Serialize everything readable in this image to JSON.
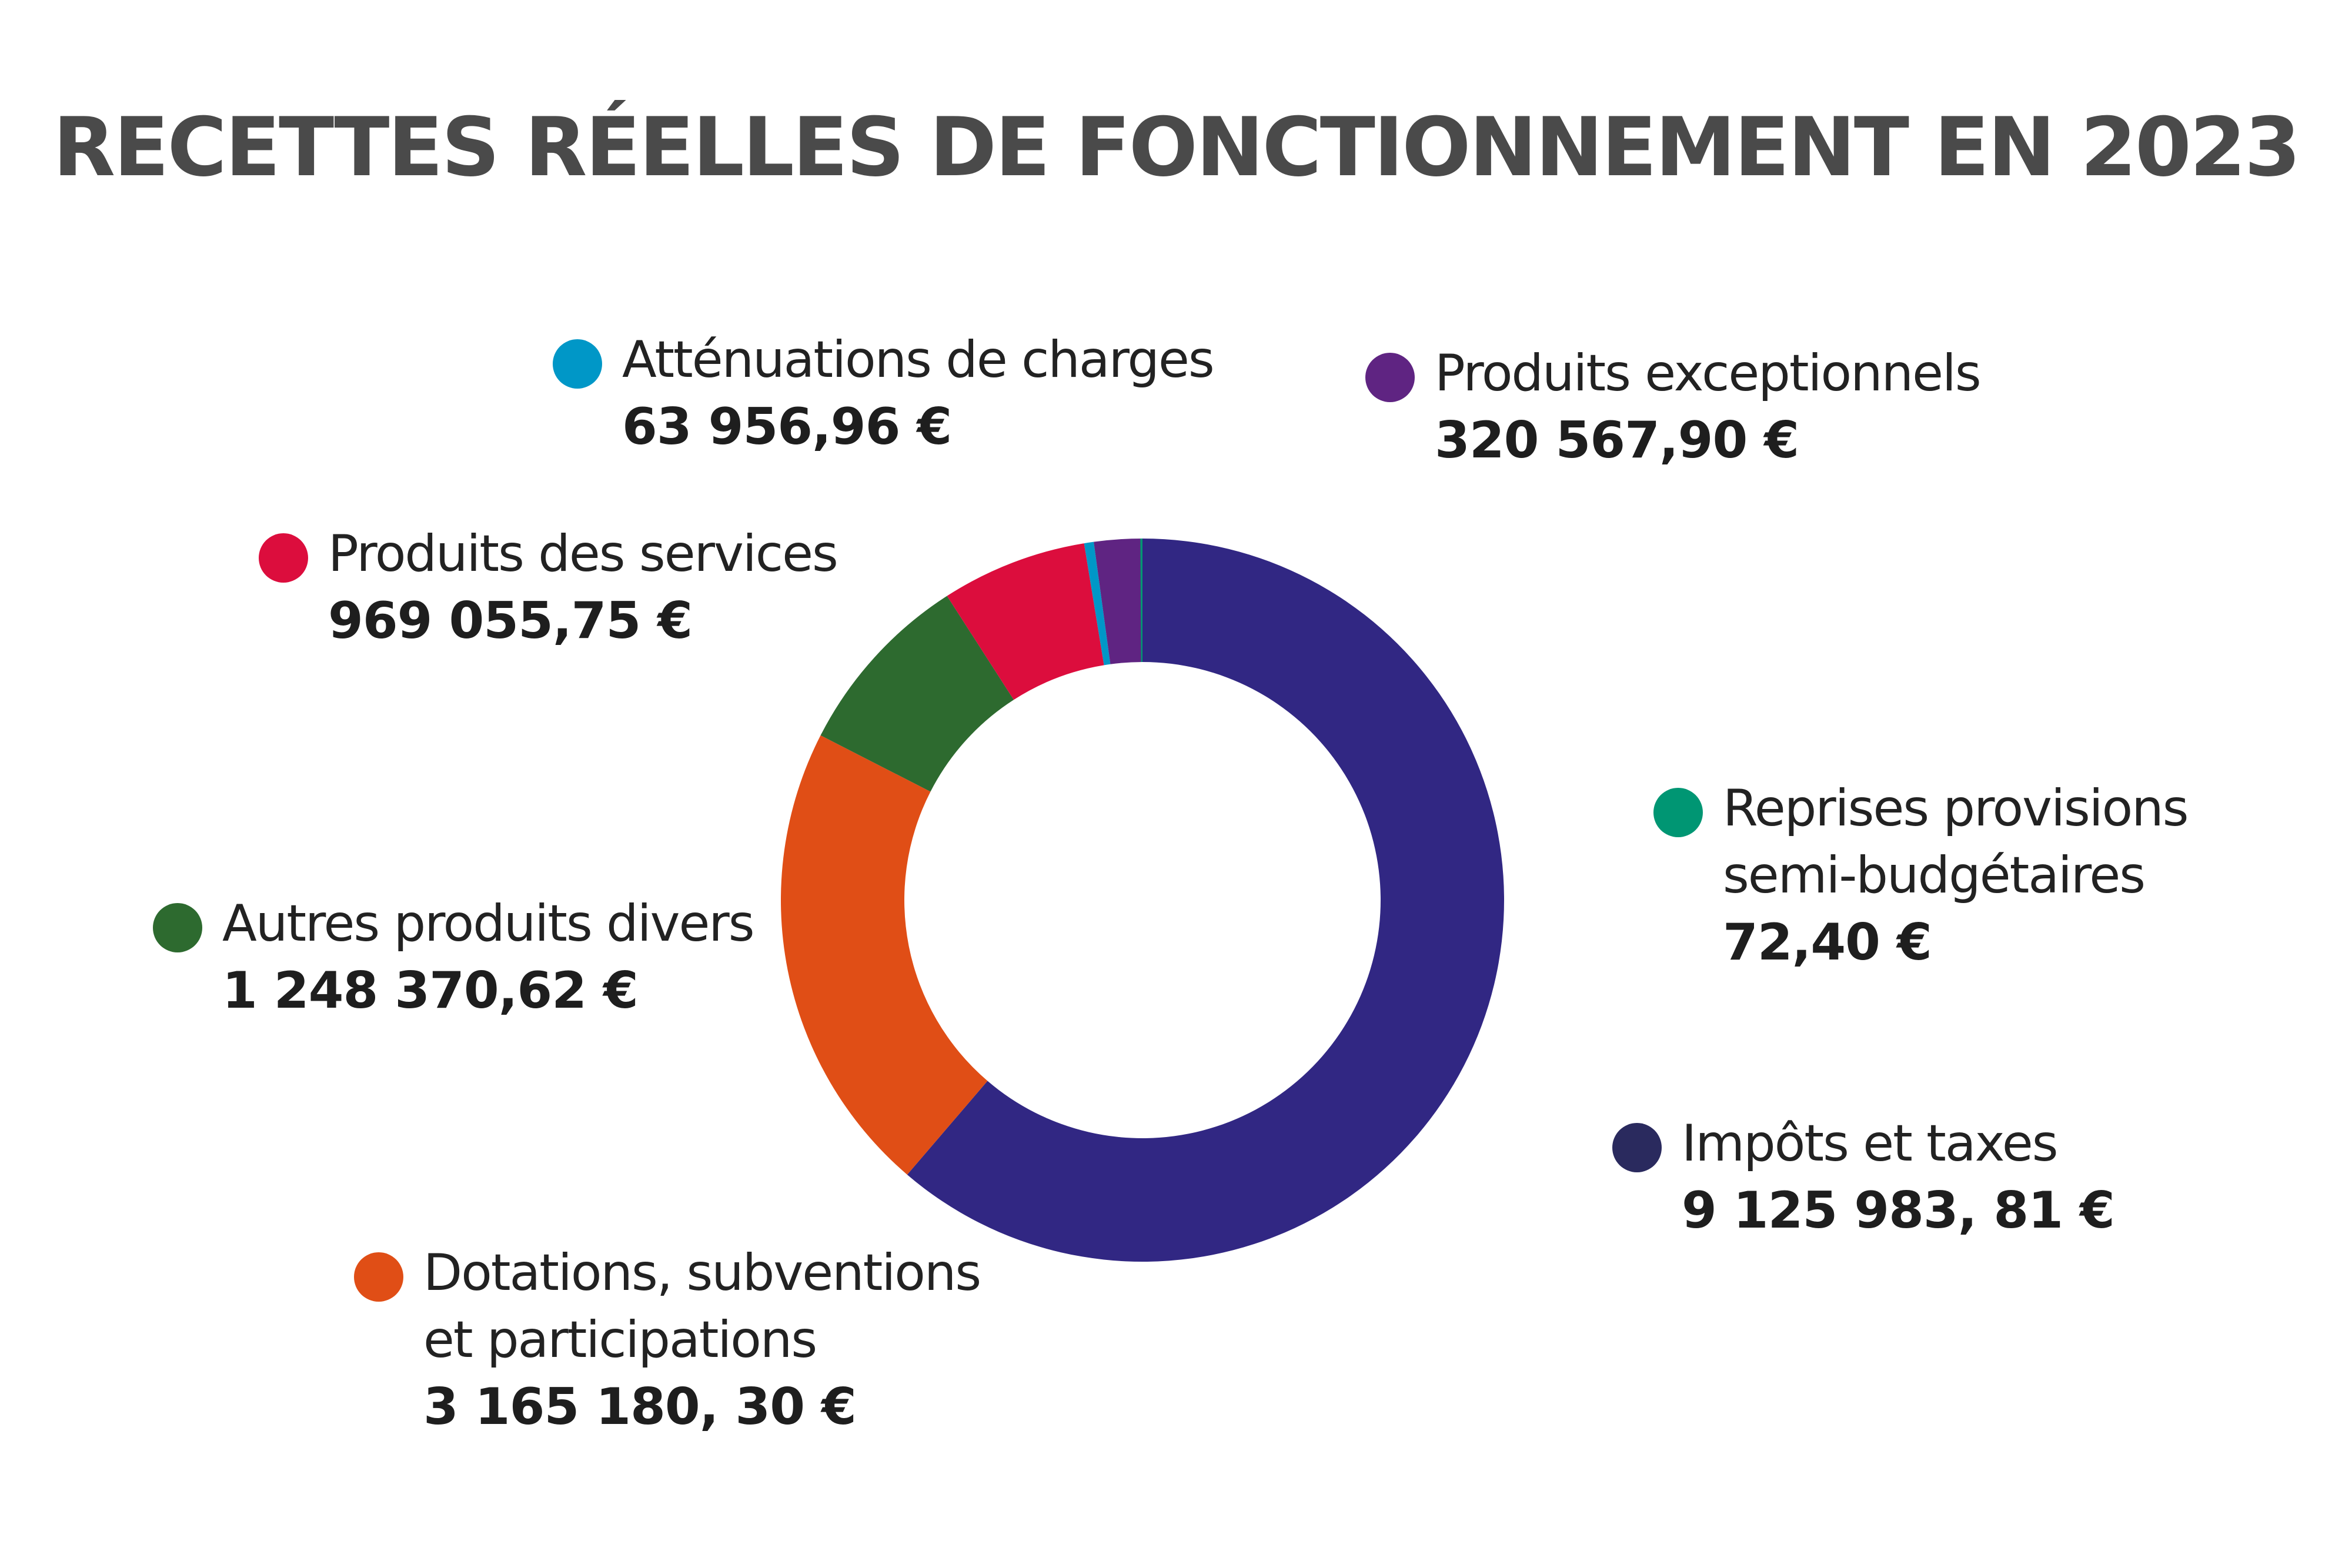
{
  "chart_data": {
    "type": "pie",
    "variant": "donut",
    "title": "RECETTES RÉELLES DE FONCTIONNEMENT EN 2023",
    "slices": [
      {
        "name": "Impôts et taxes",
        "lines": [
          "Impôts et taxes"
        ],
        "value": 9125983.81,
        "value_label": "9 125 983, 81 €",
        "color": "#312783",
        "dot_color": "#2a2a5e"
      },
      {
        "name": "Dotations, subventions et participations",
        "lines": [
          "Dotations, subventions",
          "et participations"
        ],
        "value": 3165180.3,
        "value_label": "3 165 180, 30 €",
        "color": "#e04e16",
        "dot_color": "#e04e16"
      },
      {
        "name": "Autres produits divers",
        "lines": [
          "Autres produits divers"
        ],
        "value": 1248370.62,
        "value_label": "1 248 370,62 €",
        "color": "#2d6a2f",
        "dot_color": "#2d6a2f"
      },
      {
        "name": "Produits des services",
        "lines": [
          "Produits des services"
        ],
        "value": 969055.75,
        "value_label": "969 055,75 €",
        "color": "#dc0d3d",
        "dot_color": "#dc0d3d"
      },
      {
        "name": "Atténuations de charges",
        "lines": [
          "Atténuations de charges"
        ],
        "value": 63956.96,
        "value_label": "63 956,96 €",
        "color": "#0097c7",
        "dot_color": "#0097c7"
      },
      {
        "name": "Produits exceptionnels",
        "lines": [
          "Produits exceptionnels"
        ],
        "value": 320567.9,
        "value_label": "320 567,90 €",
        "color": "#5f2482",
        "dot_color": "#5f2482"
      },
      {
        "name": "Reprises provisions semi-budgétaires",
        "lines": [
          "Reprises provisions",
          "semi-budgétaires"
        ],
        "value": 72.4,
        "value_label": "72,40 €",
        "color": "#009673",
        "dot_color": "#009673"
      }
    ]
  }
}
